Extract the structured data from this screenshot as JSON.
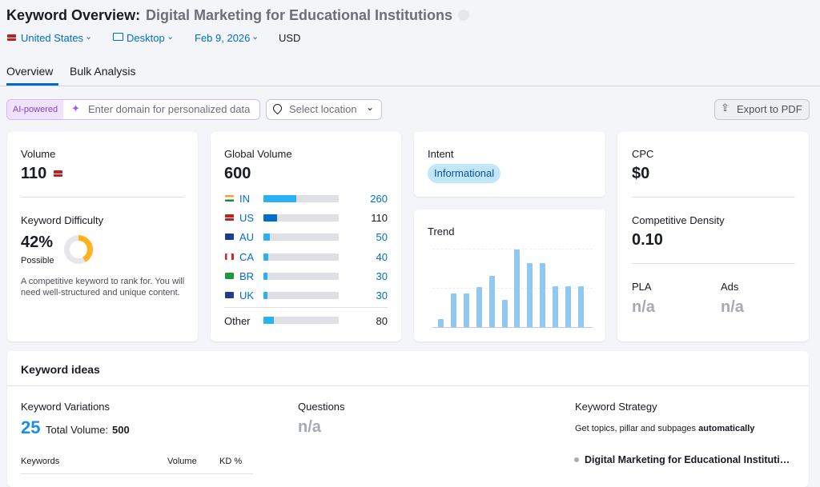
{
  "header": {
    "title": "Keyword Overview:",
    "keyword": "Digital Marketing for Educational Institutions"
  },
  "filters": {
    "country": "United States",
    "device": "Desktop",
    "date": "Feb 9, 2026",
    "currency": "USD"
  },
  "tabs": [
    "Overview",
    "Bulk Analysis"
  ],
  "toolbar": {
    "ai_badge": "AI-powered",
    "domain_placeholder": "Enter domain for personalized data",
    "location_placeholder": "Select location",
    "export": "Export to PDF"
  },
  "volume": {
    "label": "Volume",
    "value": 110
  },
  "keyword_difficulty": {
    "label": "Keyword Difficulty",
    "value": 42,
    "value_label": "42%",
    "level": "Possible",
    "description": "A competitive keyword to rank for. You will need well-structured and unique content."
  },
  "global_volume": {
    "label": "Global Volume",
    "value": 600,
    "rows": [
      {
        "code": "IN",
        "value": 260
      },
      {
        "code": "US",
        "value": 110
      },
      {
        "code": "AU",
        "value": 50
      },
      {
        "code": "CA",
        "value": 40
      },
      {
        "code": "BR",
        "value": 30
      },
      {
        "code": "UK",
        "value": 30
      }
    ],
    "other": {
      "label": "Other",
      "value": 80
    }
  },
  "intent": {
    "label": "Intent",
    "value": "Informational"
  },
  "trend": {
    "label": "Trend",
    "values": [
      10,
      43,
      43,
      52,
      66,
      35,
      100,
      82,
      82,
      53,
      53,
      53
    ]
  },
  "cpc": {
    "label": "CPC",
    "value": "$0"
  },
  "competitive_density": {
    "label": "Competitive Density",
    "value": "0.10"
  },
  "pla": {
    "label": "PLA",
    "value": "n/a"
  },
  "ads": {
    "label": "Ads",
    "value": "n/a"
  },
  "keyword_ideas": {
    "title": "Keyword ideas",
    "variations": {
      "label": "Keyword Variations",
      "count": 25,
      "total_volume_label": "Total Volume:",
      "total_volume": 500
    },
    "questions": {
      "label": "Questions",
      "value": "n/a"
    },
    "strategy": {
      "label": "Keyword Strategy",
      "description": "Get topics, pillar and subpages",
      "description_bold": "automatically",
      "keyword": "Digital Marketing for Educational Instituti…"
    },
    "table_headers": [
      "Keywords",
      "Volume",
      "KD %"
    ]
  }
}
